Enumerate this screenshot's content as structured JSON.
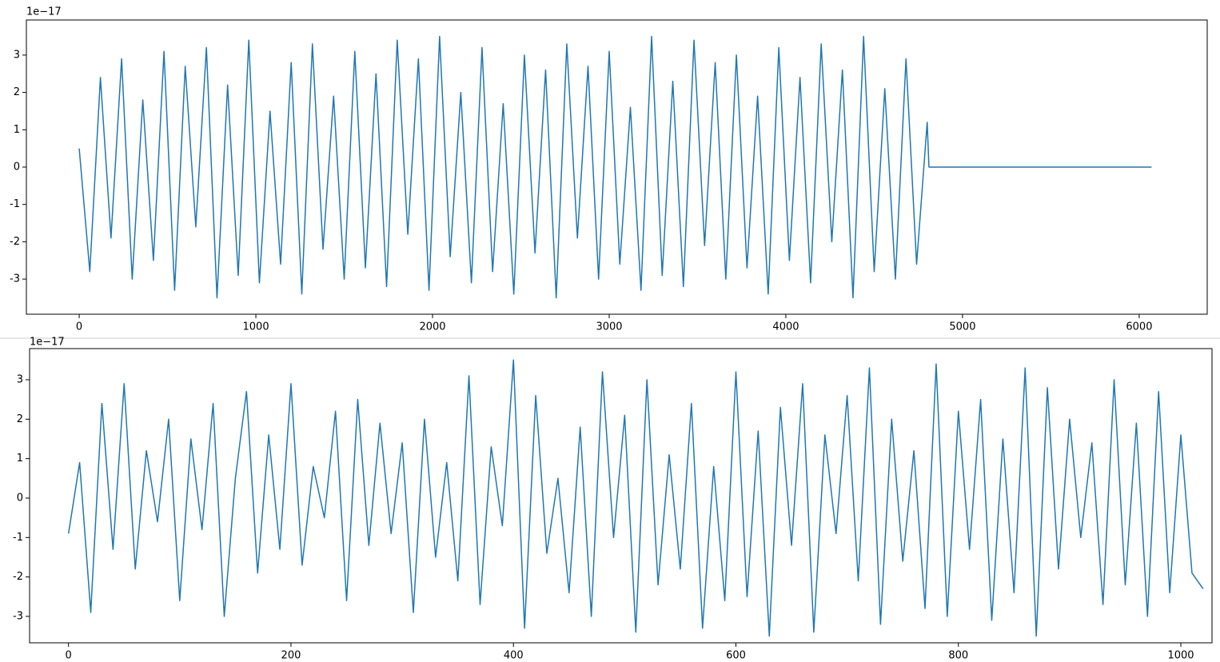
{
  "chart_data": [
    {
      "type": "line",
      "offset_label": "1e−17",
      "color": "#1f77b4",
      "x": [
        0,
        60,
        120,
        180,
        240,
        300,
        360,
        420,
        480,
        540,
        600,
        660,
        720,
        780,
        840,
        900,
        960,
        1020,
        1080,
        1140,
        1200,
        1260,
        1320,
        1380,
        1440,
        1500,
        1560,
        1620,
        1680,
        1740,
        1800,
        1860,
        1920,
        1980,
        2040,
        2100,
        2160,
        2220,
        2280,
        2340,
        2400,
        2460,
        2520,
        2580,
        2640,
        2700,
        2760,
        2820,
        2880,
        2940,
        3000,
        3060,
        3120,
        3180,
        3240,
        3300,
        3360,
        3420,
        3480,
        3540,
        3600,
        3660,
        3720,
        3780,
        3840,
        3900,
        3960,
        4020,
        4080,
        4140,
        4200,
        4260,
        4320,
        4380,
        4440,
        4500,
        4560,
        4620,
        4680,
        4740,
        4800,
        4810,
        6070
      ],
      "values": [
        0.5,
        -2.8,
        2.4,
        -1.9,
        2.9,
        -3.0,
        1.8,
        -2.5,
        3.1,
        -3.3,
        2.7,
        -1.6,
        3.2,
        -3.5,
        2.2,
        -2.9,
        3.4,
        -3.1,
        1.5,
        -2.6,
        2.8,
        -3.4,
        3.3,
        -2.2,
        1.9,
        -3.0,
        3.1,
        -2.7,
        2.5,
        -3.2,
        3.4,
        -1.8,
        2.9,
        -3.3,
        3.5,
        -2.4,
        2.0,
        -3.1,
        3.2,
        -2.8,
        1.7,
        -3.4,
        3.0,
        -2.3,
        2.6,
        -3.5,
        3.3,
        -1.9,
        2.7,
        -3.0,
        3.1,
        -2.6,
        1.6,
        -3.3,
        3.5,
        -2.9,
        2.3,
        -3.2,
        3.4,
        -2.1,
        2.8,
        -3.0,
        3.0,
        -2.7,
        1.9,
        -3.4,
        3.2,
        -2.5,
        2.4,
        -3.1,
        3.3,
        -2.0,
        2.6,
        -3.5,
        3.5,
        -2.8,
        2.1,
        -3.0,
        2.9,
        -2.6,
        1.2,
        0,
        0
      ],
      "xlim": [
        -299,
        6385
      ],
      "ylim": [
        -3.94,
        3.94
      ],
      "xticks": [
        0,
        1000,
        2000,
        3000,
        4000,
        5000,
        6000
      ],
      "yticks": [
        -3,
        -2,
        -1,
        0,
        1,
        2,
        3
      ]
    },
    {
      "type": "line",
      "offset_label": "1e−17",
      "color": "#1f77b4",
      "x": [
        0,
        10,
        20,
        30,
        40,
        50,
        60,
        70,
        80,
        90,
        100,
        110,
        120,
        130,
        140,
        150,
        160,
        170,
        180,
        190,
        200,
        210,
        220,
        230,
        240,
        250,
        260,
        270,
        280,
        290,
        300,
        310,
        320,
        330,
        340,
        350,
        360,
        370,
        380,
        390,
        400,
        410,
        420,
        430,
        440,
        450,
        460,
        470,
        480,
        490,
        500,
        510,
        520,
        530,
        540,
        550,
        560,
        570,
        580,
        590,
        600,
        610,
        620,
        630,
        640,
        650,
        660,
        670,
        680,
        690,
        700,
        710,
        720,
        730,
        740,
        750,
        760,
        770,
        780,
        790,
        800,
        810,
        820,
        830,
        840,
        850,
        860,
        870,
        880,
        890,
        900,
        910,
        920,
        930,
        940,
        950,
        960,
        970,
        980,
        990,
        1000,
        1010,
        1020
      ],
      "values": [
        -0.9,
        0.9,
        -2.9,
        2.4,
        -1.3,
        2.9,
        -1.8,
        1.2,
        -0.6,
        2.0,
        -2.6,
        1.5,
        -0.8,
        2.4,
        -3.0,
        0.5,
        2.7,
        -1.9,
        1.6,
        -1.3,
        2.9,
        -1.7,
        0.8,
        -0.5,
        2.2,
        -2.6,
        2.5,
        -1.2,
        1.9,
        -0.9,
        1.4,
        -2.9,
        2.0,
        -1.5,
        0.9,
        -2.1,
        3.1,
        -2.7,
        1.3,
        -0.7,
        3.5,
        -3.3,
        2.6,
        -1.4,
        0.5,
        -2.4,
        1.8,
        -3.0,
        3.2,
        -1.0,
        2.1,
        -3.4,
        3.0,
        -2.2,
        1.1,
        -1.8,
        2.4,
        -3.3,
        0.8,
        -2.6,
        3.2,
        -2.5,
        1.7,
        -3.5,
        2.3,
        -1.2,
        2.9,
        -3.4,
        1.6,
        -0.9,
        2.6,
        -2.1,
        3.3,
        -3.2,
        2.0,
        -1.6,
        1.2,
        -2.8,
        3.4,
        -3.0,
        2.2,
        -1.3,
        2.5,
        -3.1,
        1.5,
        -2.4,
        3.3,
        -3.5,
        2.8,
        -1.8,
        2.0,
        -1.0,
        1.4,
        -2.7,
        3.0,
        -2.2,
        1.9,
        -3.0,
        2.7,
        -2.4,
        1.6,
        -1.9,
        -2.3
      ],
      "xlim": [
        -35,
        1028
      ],
      "ylim": [
        -3.67,
        3.79
      ],
      "xticks": [
        0,
        200,
        400,
        600,
        800,
        1000
      ],
      "yticks": [
        -3,
        -2,
        -1,
        0,
        1,
        2,
        3
      ]
    }
  ]
}
